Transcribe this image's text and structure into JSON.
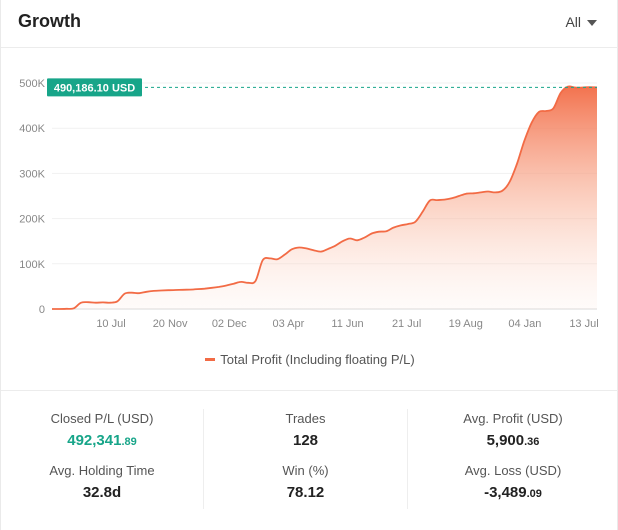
{
  "header": {
    "title": "Growth",
    "period_label": "All"
  },
  "chart_data": {
    "type": "area",
    "xlabel": "",
    "ylabel": "",
    "ylim": [
      0,
      500000
    ],
    "y_ticks": [
      "0",
      "100K",
      "200K",
      "300K",
      "400K",
      "500K"
    ],
    "x_ticks": [
      "10 Jul",
      "20 Nov",
      "02 Dec",
      "03 Apr",
      "11 Jun",
      "21 Jul",
      "19 Aug",
      "04 Jan",
      "13 Jul"
    ],
    "current_value_label": "490,186.10 USD",
    "current_value": 490186.1,
    "series": [
      {
        "name": "Total Profit (Including floating P/L)",
        "color": "#f26b45",
        "values": [
          0,
          0,
          500,
          1500,
          14000,
          15000,
          14000,
          14500,
          14000,
          17000,
          34000,
          36000,
          35000,
          38000,
          40000,
          41000,
          41500,
          42000,
          42500,
          43000,
          44000,
          45000,
          47000,
          49000,
          52000,
          56000,
          60000,
          58000,
          62000,
          108000,
          112000,
          110000,
          120000,
          132000,
          136000,
          134000,
          130000,
          127000,
          133000,
          140000,
          150000,
          156000,
          152000,
          158000,
          167000,
          171000,
          172000,
          180000,
          185000,
          188000,
          193000,
          215000,
          240000,
          241000,
          242000,
          245000,
          250000,
          255000,
          256000,
          258000,
          260000,
          258000,
          262000,
          282000,
          322000,
          372000,
          412000,
          436000,
          438000,
          444000,
          478000,
          492000,
          490000,
          490000,
          491000,
          490186.1
        ]
      }
    ]
  },
  "legend": {
    "label": "Total Profit (Including floating P/L)"
  },
  "stats": {
    "closed_pl": {
      "label": "Closed P/L (USD)",
      "int": "492,341",
      "dec": ".89"
    },
    "avg_holding": {
      "label": "Avg. Holding Time",
      "value": "32.8d"
    },
    "trades": {
      "label": "Trades",
      "value": "128"
    },
    "win": {
      "label": "Win (%)",
      "value": "78.12"
    },
    "avg_profit": {
      "label": "Avg. Profit (USD)",
      "int": "5,900",
      "dec": ".36"
    },
    "avg_loss": {
      "label": "Avg. Loss (USD)",
      "int": "-3,489",
      "dec": ".09"
    }
  }
}
